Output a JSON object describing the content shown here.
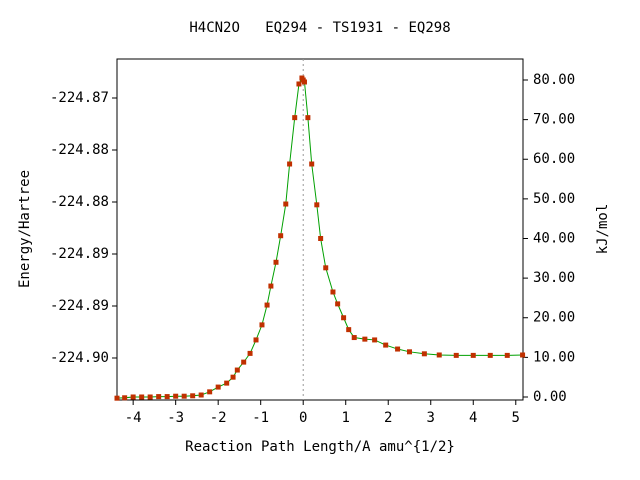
{
  "chart_data": {
    "type": "line",
    "title": "H4CN2O   EQ294 - TS1931 - EQ298",
    "xlabel": "Reaction Path Length/A amu^{1/2}",
    "ylabel": "Energy/Hartree",
    "y2label": "kJ/mol",
    "xlim": [
      -4.38,
      5.17
    ],
    "xticks": [
      -4,
      -3,
      -2,
      -1,
      0,
      1,
      2,
      3,
      4,
      5
    ],
    "ylim": [
      -224.89904,
      -224.86625
    ],
    "yticks": [
      {
        "value": -224.895,
        "label": "-224.90"
      },
      {
        "value": -224.89,
        "label": "-224.89"
      },
      {
        "value": -224.885,
        "label": "-224.89"
      },
      {
        "value": -224.88,
        "label": "-224.88"
      },
      {
        "value": -224.875,
        "label": "-224.88"
      },
      {
        "value": -224.87,
        "label": "-224.87"
      }
    ],
    "y2lim": [
      -0.76,
      85.3
    ],
    "y2ticks": [
      {
        "value": 0,
        "label": "0.00"
      },
      {
        "value": 10,
        "label": "10.00"
      },
      {
        "value": 20,
        "label": "20.00"
      },
      {
        "value": 30,
        "label": "30.00"
      },
      {
        "value": 40,
        "label": "40.00"
      },
      {
        "value": 50,
        "label": "50.00"
      },
      {
        "value": 60,
        "label": "60.00"
      },
      {
        "value": 70,
        "label": "70.00"
      },
      {
        "value": 80,
        "label": "80.00"
      }
    ],
    "vline": 0,
    "x": [
      -4.38,
      -4.2,
      -4.0,
      -3.8,
      -3.6,
      -3.4,
      -3.2,
      -3.0,
      -2.8,
      -2.6,
      -2.4,
      -2.2,
      -2.0,
      -1.8,
      -1.65,
      -1.55,
      -1.4,
      -1.25,
      -1.11,
      -0.97,
      -0.85,
      -0.76,
      -0.64,
      -0.53,
      -0.41,
      -0.32,
      -0.2,
      -0.1,
      -0.03,
      0,
      0.03,
      0.11,
      0.2,
      0.32,
      0.41,
      0.53,
      0.7,
      0.81,
      0.95,
      1.07,
      1.2,
      1.45,
      1.68,
      1.94,
      2.22,
      2.5,
      2.85,
      3.2,
      3.6,
      4.0,
      4.4,
      4.8,
      5.16
    ],
    "series": [
      {
        "color": "#c03000",
        "line_color": "#00a000",
        "axis": "y2",
        "values": [
          -0.3,
          -0.2,
          0,
          0,
          0,
          0.1,
          0.1,
          0.2,
          0.2,
          0.3,
          0.5,
          1.3,
          2.5,
          3.5,
          5,
          6.8,
          8.8,
          11,
          14.4,
          18.2,
          23.2,
          28,
          34,
          40.7,
          48.7,
          58.8,
          70.5,
          79,
          80.5,
          80,
          79.5,
          70.5,
          58.8,
          48.5,
          40,
          32.6,
          26.5,
          23.5,
          20,
          17,
          15,
          14.6,
          14.4,
          13.1,
          12.1,
          11.4,
          10.9,
          10.6,
          10.5,
          10.5,
          10.5,
          10.5,
          10.6
        ]
      }
    ]
  }
}
